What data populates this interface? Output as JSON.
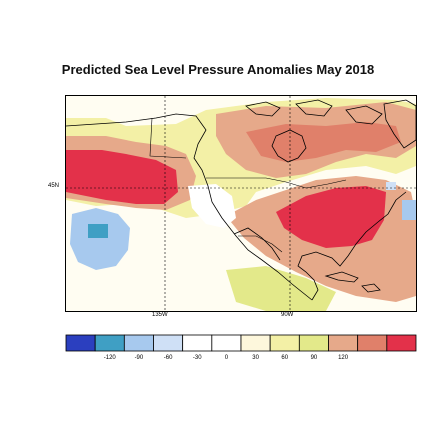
{
  "title": "Predicted Sea Level Pressure Anomalies May 2018",
  "map": {
    "lat_labels": [
      "45N"
    ],
    "lon_labels": [
      "135W",
      "90W"
    ]
  },
  "colorbar": {
    "colors": [
      "#2b3fbf",
      "#3f9fc4",
      "#a7c9ee",
      "#cfe0f6",
      "#ffffff",
      "#ffffff",
      "#fdf7dc",
      "#f3f0a6",
      "#e3e98a",
      "#e6a98a",
      "#e0806a",
      "#e3314a"
    ],
    "tick_labels": [
      "-120",
      "-90",
      "-60",
      "-30",
      "0",
      "30",
      "60",
      "90",
      "120"
    ]
  },
  "palette": {
    "ocean": "#fffdf2",
    "light_red": "#e6a98a",
    "red": "#e3314a",
    "yellow": "#e3e98a",
    "light_blue": "#a7c9ee",
    "blue": "#3f9fc4",
    "coast": "#000000",
    "graticule": "#000000"
  }
}
